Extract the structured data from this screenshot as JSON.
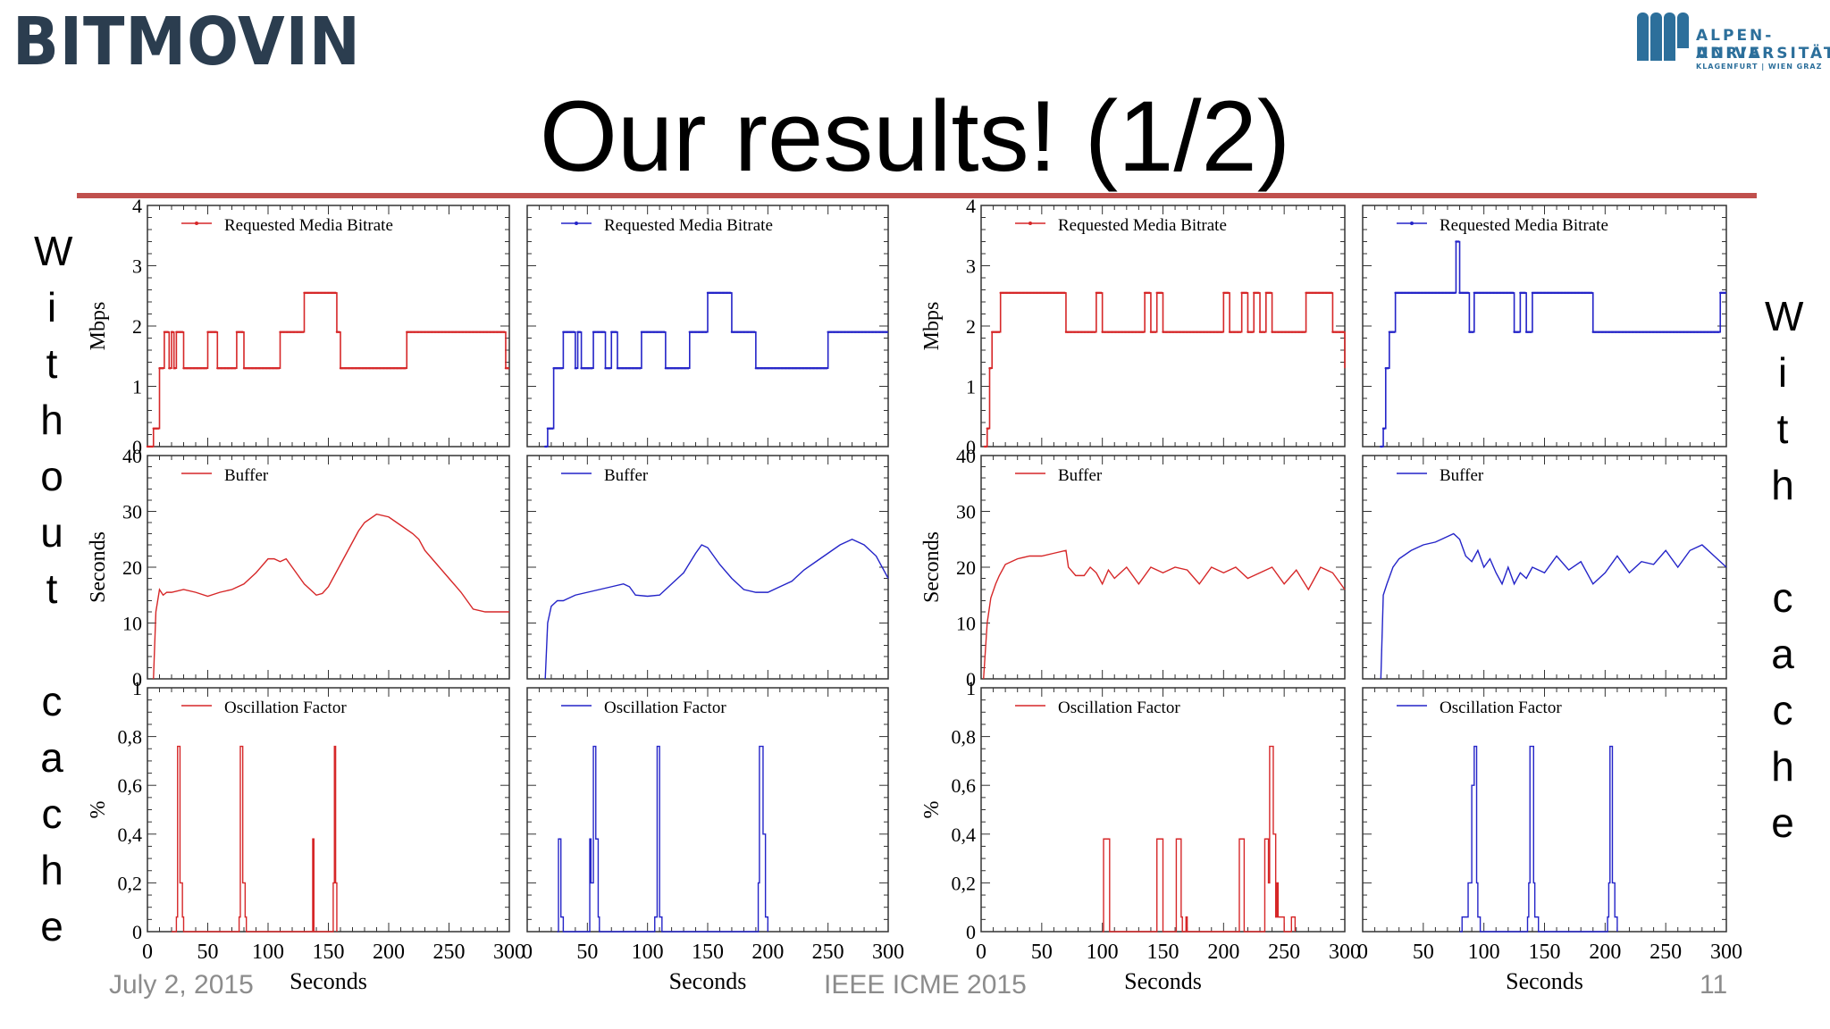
{
  "header": {
    "logo_left": "BITMOVIN",
    "logo_right_line1": "ALPEN-ADRIA",
    "logo_right_line2": "UNIVERSITÄT",
    "logo_right_line3": "KLAGENFURT | WIEN GRAZ",
    "title": "Our results! (1/2)"
  },
  "side_labels": {
    "left": [
      "W",
      "i",
      "t",
      "h",
      "o",
      "u",
      "t",
      "",
      "c",
      "a",
      "c",
      "h",
      "e"
    ],
    "right": [
      "W",
      "i",
      "t",
      "h",
      "",
      "c",
      "a",
      "c",
      "h",
      "e"
    ]
  },
  "footer": {
    "date": "July 2, 2015",
    "venue": "IEEE ICME  2015",
    "page": "11"
  },
  "colors": {
    "red": "#d62728",
    "blue": "#2424c8",
    "rule": "#c0504d"
  },
  "chart_data": [
    {
      "type": "line",
      "column": "without cache, red",
      "xlabel": "Seconds",
      "xlim": [
        0,
        300
      ],
      "xticks": [
        "0",
        "50",
        "100",
        "150",
        "200",
        "250",
        "300"
      ],
      "panels": [
        {
          "legend": "Requested Media Bitrate",
          "ylabel": "Mbps",
          "ylim": [
            0,
            4
          ],
          "yticks": [
            "0",
            "1",
            "2",
            "3",
            "4"
          ],
          "x": [
            0,
            5,
            10,
            14,
            18,
            20,
            22,
            24,
            30,
            40,
            50,
            55,
            58,
            72,
            74,
            80,
            82,
            86,
            110,
            128,
            130,
            135,
            157,
            160,
            210,
            215,
            295,
            297,
            300
          ],
          "y": [
            0,
            0.3,
            1.3,
            1.9,
            1.3,
            1.9,
            1.3,
            1.9,
            1.3,
            1.3,
            1.9,
            1.9,
            1.3,
            1.3,
            1.9,
            1.3,
            1.3,
            1.3,
            1.9,
            1.9,
            2.55,
            2.55,
            1.9,
            1.3,
            1.3,
            1.9,
            1.9,
            1.3,
            1.3
          ]
        },
        {
          "legend": "Buffer",
          "ylabel": "Seconds",
          "ylim": [
            0,
            40
          ],
          "yticks": [
            "0",
            "10",
            "20",
            "30",
            "40"
          ],
          "x": [
            5,
            7,
            10,
            13,
            16,
            20,
            30,
            40,
            50,
            60,
            70,
            80,
            90,
            100,
            105,
            110,
            115,
            120,
            125,
            130,
            135,
            140,
            145,
            150,
            155,
            160,
            165,
            170,
            175,
            180,
            190,
            200,
            210,
            220,
            225,
            230,
            240,
            250,
            260,
            270,
            280,
            290,
            295,
            300
          ],
          "y": [
            0,
            12,
            16,
            15,
            15.5,
            15.5,
            16,
            15.5,
            14.8,
            15.5,
            16,
            17,
            19,
            21.5,
            21.5,
            21,
            21.5,
            20,
            18.5,
            17,
            16,
            15,
            15.3,
            16.5,
            18.5,
            20.5,
            22.5,
            24.5,
            26.5,
            28,
            29.5,
            29,
            27.5,
            26,
            25,
            23,
            20.5,
            18,
            15.5,
            12.5,
            12,
            12,
            12,
            12
          ]
        },
        {
          "legend": "Oscillation Factor",
          "ylabel": "%",
          "ylim": [
            0,
            1
          ],
          "yticks": [
            "0",
            "0,2",
            "0,4",
            "0,6",
            "0,8",
            "1"
          ],
          "x": [
            20,
            24,
            25,
            26,
            27,
            28,
            29,
            30,
            75,
            76,
            77,
            78,
            79,
            80,
            81,
            82,
            135,
            137,
            138,
            152,
            154,
            155,
            156,
            157
          ],
          "y": [
            0,
            0.06,
            0.76,
            0.76,
            0.2,
            0.2,
            0.06,
            0,
            0,
            0.06,
            0.76,
            0.76,
            0.2,
            0.2,
            0.06,
            0,
            0,
            0.38,
            0,
            0,
            0.2,
            0.76,
            0.2,
            0
          ]
        }
      ]
    },
    {
      "type": "line",
      "column": "without cache, blue",
      "xlabel": "Seconds",
      "xlim": [
        0,
        300
      ],
      "xticks": [
        "0",
        "50",
        "100",
        "150",
        "200",
        "250",
        "300"
      ],
      "panels": [
        {
          "legend": "Requested Media Bitrate",
          "ylabel": "",
          "ylim": [
            0,
            4
          ],
          "x": [
            15,
            17,
            20,
            22,
            28,
            30,
            40,
            42,
            45,
            55,
            60,
            65,
            70,
            75,
            90,
            95,
            110,
            115,
            130,
            135,
            145,
            150,
            165,
            170,
            190,
            200,
            205,
            250,
            255,
            295,
            300
          ],
          "y": [
            0,
            0.3,
            0.3,
            1.3,
            1.3,
            1.9,
            1.3,
            1.9,
            1.3,
            1.9,
            1.9,
            1.3,
            1.9,
            1.3,
            1.3,
            1.9,
            1.9,
            1.3,
            1.3,
            1.9,
            1.9,
            2.55,
            2.55,
            1.9,
            1.3,
            1.3,
            1.3,
            1.9,
            1.9,
            1.9,
            1.9
          ]
        },
        {
          "legend": "Buffer",
          "ylabel": "",
          "ylim": [
            0,
            40
          ],
          "x": [
            15,
            17,
            20,
            25,
            30,
            40,
            50,
            60,
            70,
            80,
            85,
            90,
            100,
            110,
            120,
            130,
            140,
            145,
            150,
            155,
            160,
            170,
            180,
            190,
            200,
            210,
            220,
            230,
            240,
            250,
            260,
            270,
            280,
            290,
            300
          ],
          "y": [
            0,
            10,
            13,
            14,
            14,
            15,
            15.5,
            16,
            16.5,
            17,
            16.5,
            15,
            14.8,
            15,
            17,
            19,
            22.5,
            24,
            23.5,
            22,
            20.5,
            18,
            16,
            15.5,
            15.5,
            16.5,
            17.5,
            19.5,
            21,
            22.5,
            24,
            25,
            24,
            22,
            18
          ]
        },
        {
          "legend": "Oscillation Factor",
          "ylabel": "",
          "ylim": [
            0,
            1
          ],
          "x": [
            25,
            26,
            27,
            28,
            29,
            30,
            32,
            50,
            52,
            53,
            55,
            56,
            57,
            58,
            59,
            60,
            105,
            106,
            108,
            109,
            110,
            112,
            190,
            192,
            193,
            195,
            196,
            197,
            198,
            199,
            200
          ],
          "y": [
            0,
            0.38,
            0.38,
            0.06,
            0.06,
            0,
            0,
            0,
            0.38,
            0.2,
            0.76,
            0.76,
            0.38,
            0.38,
            0.06,
            0,
            0,
            0.06,
            0.76,
            0.76,
            0.06,
            0,
            0,
            0.2,
            0.76,
            0.76,
            0.4,
            0.4,
            0.06,
            0.06,
            0
          ]
        }
      ]
    },
    {
      "type": "line",
      "column": "with cache, red",
      "xlabel": "Seconds",
      "xlim": [
        0,
        300
      ],
      "xticks": [
        "0",
        "50",
        "100",
        "150",
        "200",
        "250",
        "300"
      ],
      "panels": [
        {
          "legend": "Requested Media Bitrate",
          "ylabel": "Mbps",
          "ylim": [
            0,
            4
          ],
          "yticks": [
            "0",
            "1",
            "2",
            "3",
            "4"
          ],
          "x": [
            3,
            5,
            7,
            9,
            12,
            16,
            20,
            24,
            70,
            75,
            95,
            100,
            135,
            140,
            145,
            150,
            155,
            200,
            205,
            215,
            220,
            225,
            230,
            235,
            240,
            268,
            280,
            290,
            295,
            300
          ],
          "y": [
            0,
            0.3,
            1.3,
            1.9,
            1.9,
            2.55,
            2.55,
            2.55,
            1.9,
            1.9,
            2.55,
            1.9,
            2.55,
            1.9,
            2.55,
            1.9,
            1.9,
            2.55,
            1.9,
            2.55,
            1.9,
            2.55,
            1.9,
            2.55,
            1.9,
            2.55,
            2.55,
            1.9,
            1.9,
            1.3
          ]
        },
        {
          "legend": "Buffer",
          "ylabel": "Seconds",
          "ylim": [
            0,
            40
          ],
          "yticks": [
            "0",
            "10",
            "20",
            "30",
            "40"
          ],
          "x": [
            2,
            5,
            8,
            12,
            15,
            20,
            30,
            40,
            50,
            60,
            70,
            72,
            78,
            85,
            90,
            95,
            100,
            105,
            110,
            120,
            130,
            140,
            150,
            160,
            170,
            180,
            190,
            200,
            210,
            220,
            230,
            240,
            250,
            260,
            270,
            280,
            290,
            300
          ],
          "y": [
            0,
            10,
            14.5,
            17,
            18.5,
            20.5,
            21.5,
            22,
            22,
            22.5,
            23,
            20,
            18.5,
            18.5,
            20,
            19,
            17,
            19.5,
            18,
            20,
            17,
            20,
            19,
            20,
            19.5,
            17,
            20,
            19,
            20,
            18,
            19,
            20,
            17,
            19.5,
            16,
            20,
            19,
            16
          ]
        },
        {
          "legend": "Oscillation Factor",
          "ylabel": "%",
          "ylim": [
            0,
            1
          ],
          "yticks": [
            "0",
            "0,2",
            "0,4",
            "0,6",
            "0,8",
            "1"
          ],
          "x": [
            100,
            101,
            105,
            106,
            144,
            145,
            149,
            150,
            160,
            161,
            163,
            165,
            166,
            169,
            170,
            212,
            213,
            216,
            217,
            233,
            234,
            236,
            237,
            238,
            240,
            241,
            243,
            244,
            245,
            250,
            255,
            256,
            258,
            259
          ],
          "y": [
            0,
            0.38,
            0.38,
            0,
            0,
            0.38,
            0.38,
            0,
            0,
            0.38,
            0.38,
            0.06,
            0,
            0.06,
            0,
            0,
            0.38,
            0.38,
            0,
            0,
            0.38,
            0.38,
            0.2,
            0.76,
            0.76,
            0.4,
            0.06,
            0.2,
            0.06,
            0,
            0,
            0.06,
            0.06,
            0
          ]
        }
      ]
    },
    {
      "type": "line",
      "column": "with cache, blue",
      "xlabel": "Seconds",
      "xlim": [
        0,
        300
      ],
      "xticks": [
        "0",
        "50",
        "100",
        "150",
        "200",
        "250",
        "300"
      ],
      "panels": [
        {
          "legend": "Requested Media Bitrate",
          "ylabel": "",
          "ylim": [
            0,
            4
          ],
          "x": [
            15,
            17,
            19,
            22,
            27,
            30,
            75,
            77,
            80,
            82,
            88,
            92,
            125,
            130,
            135,
            140,
            190,
            195,
            295,
            300
          ],
          "y": [
            0,
            0.3,
            1.3,
            1.9,
            2.55,
            2.55,
            2.55,
            3.4,
            2.55,
            2.55,
            1.9,
            2.55,
            1.9,
            2.55,
            1.9,
            2.55,
            1.9,
            1.9,
            2.55,
            2.55
          ]
        },
        {
          "legend": "Buffer",
          "ylabel": "",
          "ylim": [
            0,
            40
          ],
          "x": [
            15,
            17,
            20,
            25,
            30,
            40,
            50,
            60,
            70,
            75,
            80,
            85,
            90,
            95,
            100,
            105,
            110,
            115,
            120,
            125,
            130,
            135,
            140,
            150,
            160,
            170,
            180,
            190,
            200,
            210,
            220,
            230,
            240,
            250,
            260,
            270,
            280,
            290,
            300
          ],
          "y": [
            0,
            15,
            17,
            20,
            21.5,
            23,
            24,
            24.5,
            25.5,
            26,
            25,
            22,
            21,
            23,
            20,
            21.5,
            19,
            17,
            20,
            17,
            19,
            18,
            20,
            19,
            22,
            19.5,
            21,
            17,
            19,
            22,
            19,
            21,
            20.5,
            23,
            20,
            23,
            24,
            22,
            20
          ]
        },
        {
          "legend": "Oscillation Factor",
          "ylabel": "",
          "ylim": [
            0,
            1
          ],
          "x": [
            80,
            82,
            86,
            87,
            89,
            90,
            91,
            92,
            93,
            94,
            95,
            96,
            97,
            135,
            136,
            137,
            138,
            140,
            141,
            142,
            144,
            145,
            200,
            202,
            203,
            204,
            205,
            206,
            207,
            208,
            209,
            210
          ],
          "y": [
            0,
            0.06,
            0.06,
            0.2,
            0.2,
            0.6,
            0.6,
            0.76,
            0.76,
            0.2,
            0.06,
            0.06,
            0,
            0,
            0.06,
            0.2,
            0.76,
            0.76,
            0.2,
            0.06,
            0.06,
            0,
            0,
            0.06,
            0.2,
            0.76,
            0.76,
            0.2,
            0.2,
            0.06,
            0.06,
            0
          ]
        }
      ]
    }
  ]
}
